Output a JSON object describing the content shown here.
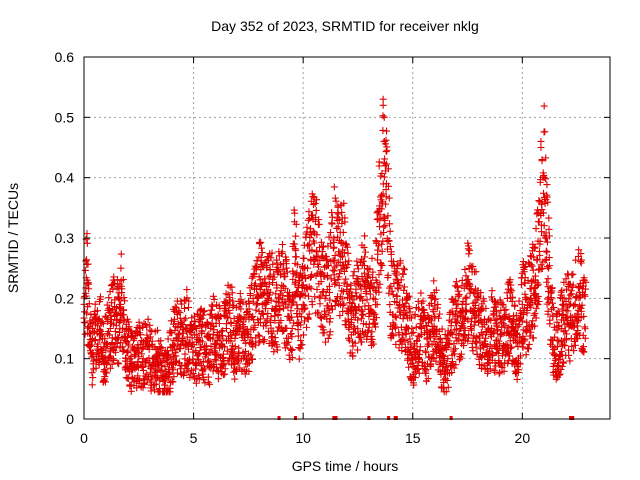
{
  "chart_data": {
    "type": "scatter",
    "title": "Day 352 of 2023, SRMTID for receiver nklg",
    "xlabel": "GPS time / hours",
    "ylabel": "SRMTID / TECUs",
    "xlim": [
      0,
      24
    ],
    "ylim": [
      0,
      0.6
    ],
    "xticks": [
      0,
      5,
      10,
      15,
      20
    ],
    "xtick_labels": [
      "0",
      "5",
      "10",
      "15",
      "20"
    ],
    "yticks": [
      0,
      0.1,
      0.2,
      0.3,
      0.4,
      0.5,
      0.6
    ],
    "ytick_labels": [
      "0",
      "0.1",
      "0.2",
      "0.3",
      "0.4",
      "0.5",
      "0.6"
    ],
    "grid": true,
    "marker": "plus",
    "series_color": "#e00000",
    "data_range_hours": [
      0,
      22.9
    ],
    "series": [
      {
        "name": "SRMTID",
        "x": [
          0.0,
          0.15,
          0.25,
          0.4,
          0.5,
          0.6,
          0.75,
          0.9,
          1.0,
          1.2,
          1.4,
          1.6,
          1.7,
          1.9,
          2.1,
          2.3,
          2.5,
          2.7,
          2.9,
          3.1,
          3.3,
          3.5,
          3.7,
          3.9,
          4.1,
          4.3,
          4.5,
          4.7,
          4.9,
          5.1,
          5.3,
          5.5,
          5.7,
          5.9,
          6.1,
          6.3,
          6.5,
          6.7,
          6.9,
          7.1,
          7.3,
          7.5,
          7.7,
          7.9,
          8.1,
          8.3,
          8.5,
          8.7,
          8.9,
          9.1,
          9.3,
          9.5,
          9.6,
          9.8,
          10.0,
          10.2,
          10.4,
          10.6,
          10.8,
          11.0,
          11.2,
          11.4,
          11.6,
          11.8,
          12.0,
          12.2,
          12.4,
          12.6,
          12.8,
          13.0,
          13.2,
          13.4,
          13.5,
          13.6,
          13.7,
          13.8,
          14.0,
          14.2,
          14.4,
          14.6,
          14.8,
          15.0,
          15.2,
          15.4,
          15.6,
          15.8,
          16.0,
          16.2,
          16.4,
          16.6,
          16.8,
          17.0,
          17.2,
          17.4,
          17.6,
          17.8,
          18.0,
          18.2,
          18.4,
          18.6,
          18.8,
          19.0,
          19.2,
          19.4,
          19.6,
          19.8,
          20.0,
          20.2,
          20.4,
          20.6,
          20.8,
          20.9,
          21.0,
          21.1,
          21.2,
          21.4,
          21.6,
          21.8,
          22.0,
          22.2,
          22.4,
          22.6,
          22.8
        ],
        "y": [
          0.19,
          0.23,
          0.12,
          0.11,
          0.13,
          0.12,
          0.14,
          0.1,
          0.12,
          0.15,
          0.17,
          0.16,
          0.22,
          0.13,
          0.1,
          0.09,
          0.11,
          0.1,
          0.12,
          0.09,
          0.1,
          0.08,
          0.07,
          0.09,
          0.13,
          0.14,
          0.13,
          0.15,
          0.12,
          0.11,
          0.13,
          0.12,
          0.11,
          0.14,
          0.13,
          0.12,
          0.15,
          0.16,
          0.12,
          0.15,
          0.13,
          0.14,
          0.17,
          0.2,
          0.22,
          0.19,
          0.21,
          0.18,
          0.2,
          0.22,
          0.17,
          0.15,
          0.29,
          0.16,
          0.19,
          0.25,
          0.28,
          0.27,
          0.24,
          0.2,
          0.22,
          0.3,
          0.26,
          0.28,
          0.22,
          0.16,
          0.18,
          0.2,
          0.22,
          0.17,
          0.2,
          0.28,
          0.33,
          0.36,
          0.46,
          0.39,
          0.22,
          0.17,
          0.19,
          0.18,
          0.15,
          0.1,
          0.13,
          0.15,
          0.11,
          0.14,
          0.17,
          0.12,
          0.09,
          0.1,
          0.14,
          0.16,
          0.15,
          0.2,
          0.22,
          0.18,
          0.16,
          0.14,
          0.12,
          0.15,
          0.13,
          0.14,
          0.12,
          0.17,
          0.13,
          0.12,
          0.19,
          0.18,
          0.2,
          0.23,
          0.29,
          0.36,
          0.4,
          0.3,
          0.25,
          0.13,
          0.12,
          0.15,
          0.18,
          0.16,
          0.19,
          0.21,
          0.17
        ]
      }
    ],
    "gap_marks_hours": [
      8.9,
      9.65,
      11.4,
      11.5,
      13.0,
      13.9,
      14.2,
      14.25,
      16.75,
      22.2,
      22.3
    ]
  }
}
